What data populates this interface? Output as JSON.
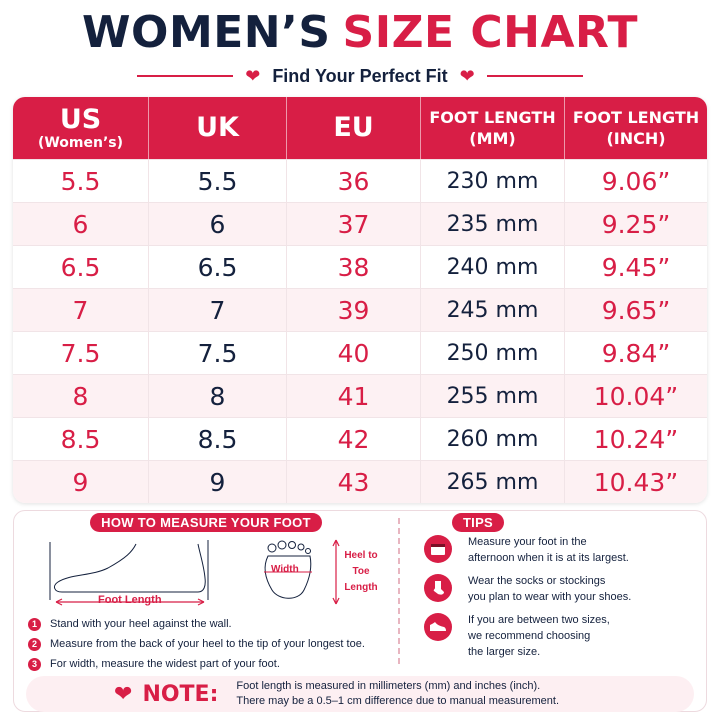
{
  "title": {
    "part1": "WOMEN’S",
    "part2": "SIZE CHART"
  },
  "subtitle": "Find Your Perfect Fit",
  "table": {
    "headers": [
      {
        "main": "US",
        "sub": "(Women’s)"
      },
      {
        "main": "UK",
        "sub": ""
      },
      {
        "main": "EU",
        "sub": ""
      },
      {
        "main": "FOOT LENGTH",
        "sub": "(MM)"
      },
      {
        "main": "FOOT LENGTH",
        "sub": "(INCH)"
      }
    ],
    "rows": [
      {
        "us": "5.5",
        "uk": "5.5",
        "eu": "36",
        "mm": "230 mm",
        "inch": "9.06”"
      },
      {
        "us": "6",
        "uk": "6",
        "eu": "37",
        "mm": "235 mm",
        "inch": "9.25”"
      },
      {
        "us": "6.5",
        "uk": "6.5",
        "eu": "38",
        "mm": "240 mm",
        "inch": "9.45”"
      },
      {
        "us": "7",
        "uk": "7",
        "eu": "39",
        "mm": "245 mm",
        "inch": "9.65”"
      },
      {
        "us": "7.5",
        "uk": "7.5",
        "eu": "40",
        "mm": "250 mm",
        "inch": "9.84”"
      },
      {
        "us": "8",
        "uk": "8",
        "eu": "41",
        "mm": "255 mm",
        "inch": "10.04”"
      },
      {
        "us": "8.5",
        "uk": "8.5",
        "eu": "42",
        "mm": "260 mm",
        "inch": "10.24”"
      },
      {
        "us": "9",
        "uk": "9",
        "eu": "43",
        "mm": "265 mm",
        "inch": "10.43”"
      }
    ]
  },
  "measure": {
    "heading": "HOW TO MEASURE YOUR FOOT",
    "foot_length_label": "Foot Length",
    "width_label": "Width",
    "heel_to_toe_lines": [
      "Heel to",
      "Toe",
      "Length"
    ],
    "steps": [
      {
        "num": "1",
        "text": "Stand with your heel against the wall."
      },
      {
        "num": "2",
        "text": "Measure from the back of your heel to the tip of your longest toe."
      },
      {
        "num": "3",
        "text": "For width, measure the widest part of your foot."
      }
    ]
  },
  "tips": {
    "heading": "TIPS",
    "items": [
      {
        "icon": "calendar-icon",
        "lines": [
          "Measure your foot in the",
          "afternoon when it is at its largest."
        ]
      },
      {
        "icon": "sock-icon",
        "lines": [
          "Wear the socks or stockings",
          "you plan to wear with your shoes."
        ]
      },
      {
        "icon": "shoe-icon",
        "lines": [
          "If you are between two sizes,",
          "we recommend choosing",
          "the larger size."
        ]
      }
    ]
  },
  "note": {
    "title": "NOTE:",
    "lines": [
      "Foot length is measured in millimeters (mm) and inches (inch).",
      "There may be a 0.5–1 cm difference due to manual measurement."
    ]
  },
  "colors": {
    "accent": "#d81e46",
    "navy": "#14213d",
    "row_alt": "#fdf1f3"
  }
}
